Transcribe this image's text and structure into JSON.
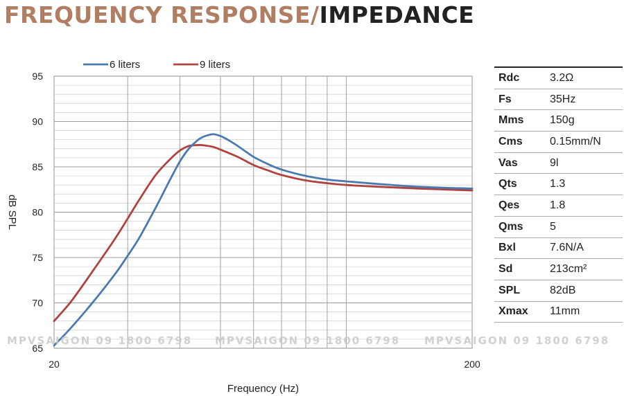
{
  "title": {
    "part1": "FREQUENCY RESPONSE/",
    "part2": "IMPEDANCE"
  },
  "colors": {
    "title_accent": "#b07e62",
    "title_dark": "#222222",
    "series_6l": "#4a7aaf",
    "series_9l": "#b0423f",
    "grid": "#b5b5b5"
  },
  "chart_data": {
    "type": "line",
    "title": "",
    "xlabel": "Frequency (Hz)",
    "ylabel": "dB SPL",
    "xscale": "log",
    "xlim": [
      20,
      200
    ],
    "ylim": [
      65,
      95
    ],
    "xticks": [
      20,
      30,
      40,
      50,
      60,
      70,
      80,
      90,
      100,
      200
    ],
    "xtick_labels": [
      "20",
      "200"
    ],
    "yticks": [
      65,
      70,
      75,
      80,
      85,
      90,
      95
    ],
    "ytick_labels": [
      "65",
      "70",
      "75",
      "80",
      "85",
      "90",
      "95"
    ],
    "grid": true,
    "legend_position": "top",
    "series": [
      {
        "name": "6 liters",
        "color": "#4a7aaf",
        "x": [
          20,
          22,
          25,
          28,
          30,
          32,
          35,
          38,
          40,
          42,
          44,
          45,
          46,
          48,
          50,
          52,
          55,
          60,
          65,
          70,
          80,
          90,
          100,
          120,
          150,
          200
        ],
        "y": [
          65.3,
          67.3,
          70.3,
          73.2,
          75.2,
          77.2,
          80.5,
          83.7,
          85.6,
          87.0,
          87.9,
          88.2,
          88.4,
          88.6,
          88.4,
          88.0,
          87.3,
          86.1,
          85.3,
          84.7,
          84.0,
          83.6,
          83.4,
          83.1,
          82.8,
          82.6
        ]
      },
      {
        "name": "9 liters",
        "color": "#b0423f",
        "x": [
          20,
          22,
          25,
          28,
          30,
          32,
          35,
          38,
          40,
          42,
          44,
          45,
          46,
          48,
          50,
          55,
          60,
          65,
          70,
          80,
          90,
          100,
          120,
          150,
          200
        ],
        "y": [
          68.0,
          70.2,
          73.8,
          77.1,
          79.3,
          81.4,
          84.1,
          85.9,
          86.8,
          87.3,
          87.4,
          87.4,
          87.35,
          87.2,
          86.9,
          86.1,
          85.2,
          84.6,
          84.1,
          83.5,
          83.2,
          83.0,
          82.8,
          82.6,
          82.4
        ]
      }
    ]
  },
  "specs": [
    {
      "param": "Rdc",
      "value": "3.2Ω"
    },
    {
      "param": "Fs",
      "value": "35Hz"
    },
    {
      "param": "Mms",
      "value": "150g"
    },
    {
      "param": "Cms",
      "value": "0.15mm/N"
    },
    {
      "param": "Vas",
      "value": "9l"
    },
    {
      "param": "Qts",
      "value": "1.3"
    },
    {
      "param": "Qes",
      "value": "1.8"
    },
    {
      "param": "Qms",
      "value": "5"
    },
    {
      "param": "Bxl",
      "value": "7.6N/A"
    },
    {
      "param": "Sd",
      "value": "213cm²"
    },
    {
      "param": "SPL",
      "value": "82dB"
    },
    {
      "param": "Xmax",
      "value": "11mm"
    }
  ],
  "watermark": [
    "MPVSAIGON 09 1800 6798",
    "MPVSAIGON 09 1800 6798",
    "MPVSAIGON 09 1800 6798"
  ]
}
